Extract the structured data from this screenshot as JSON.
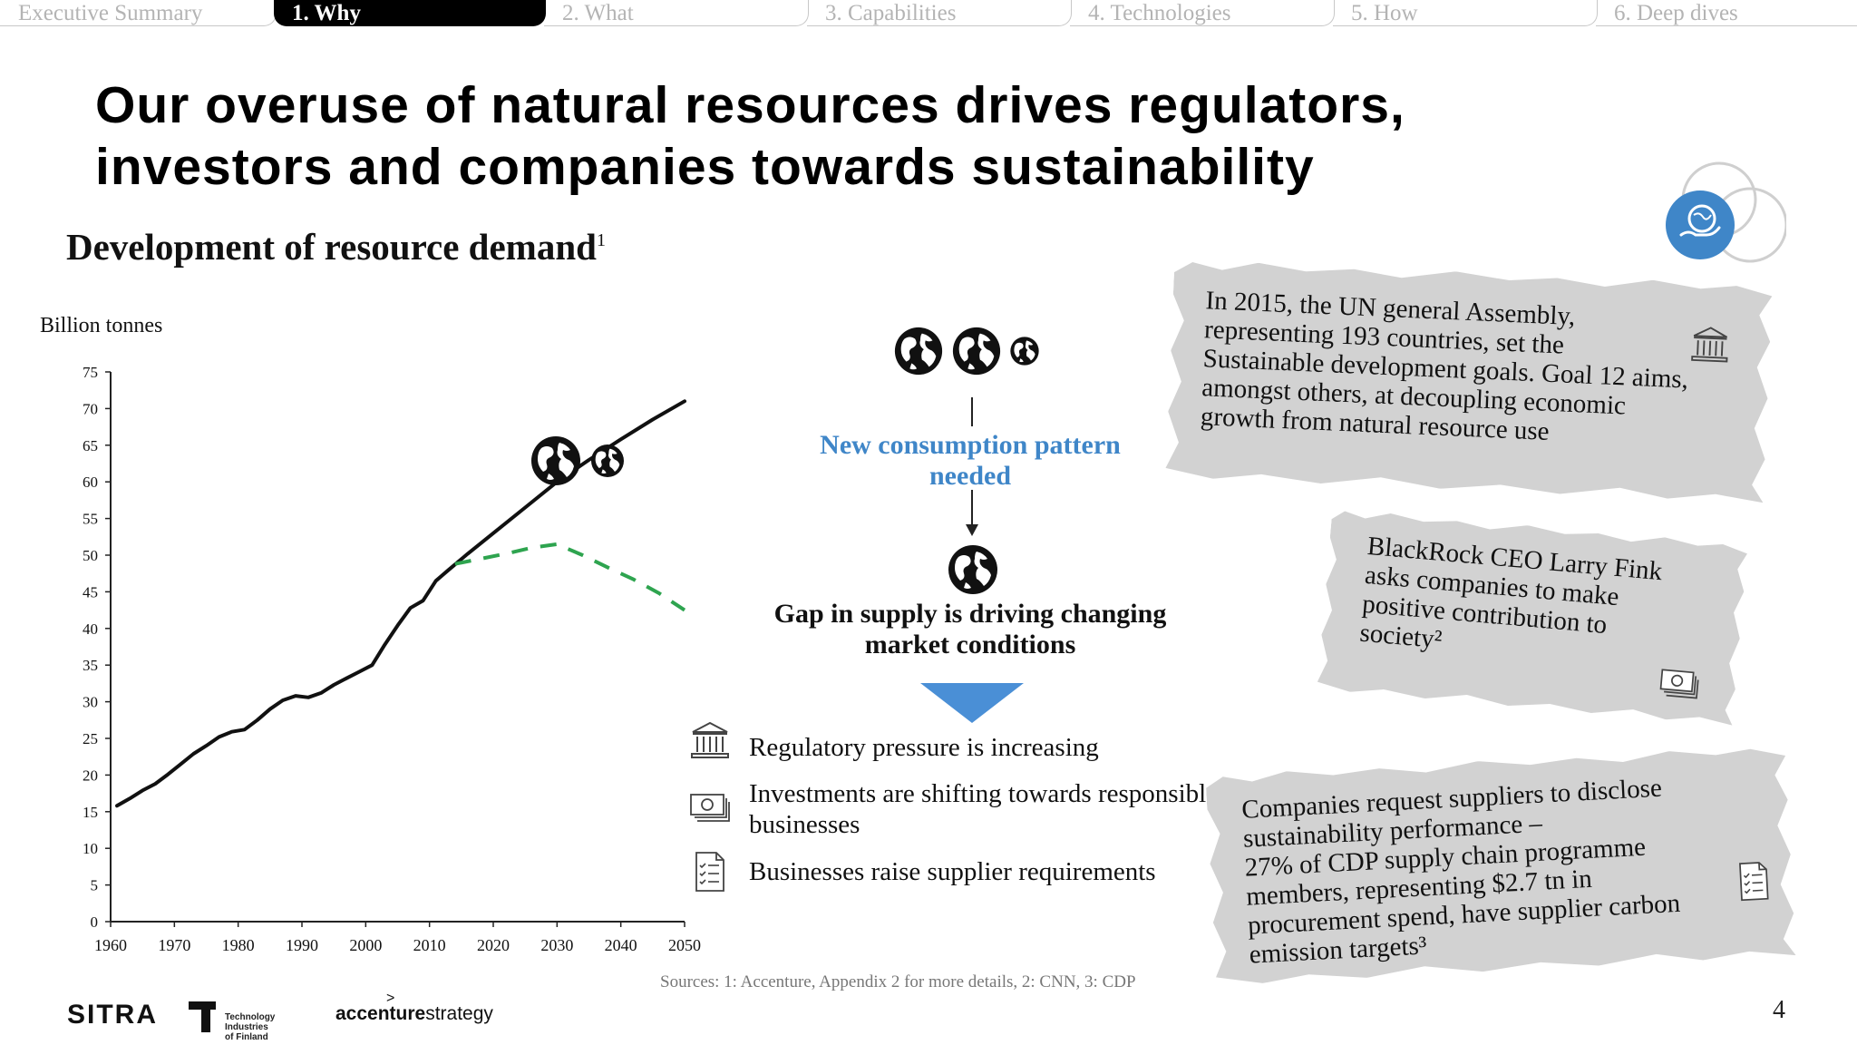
{
  "tabs": [
    {
      "label": "Executive Summary",
      "active": false
    },
    {
      "label": "1. Why",
      "active": true
    },
    {
      "label": "2. What",
      "active": false
    },
    {
      "label": "3. Capabilities",
      "active": false
    },
    {
      "label": "4. Technologies",
      "active": false
    },
    {
      "label": "5. How",
      "active": false
    },
    {
      "label": "6. Deep dives",
      "active": false
    }
  ],
  "title": {
    "line1": "Our overuse of natural resources drives regulators,",
    "line2": "investors and companies towards sustainability"
  },
  "section": {
    "heading": "Development of resource demand",
    "footnote": "1"
  },
  "chart_data": {
    "type": "line",
    "ylabel": "Billion tonnes",
    "xlabel": "",
    "xlim": [
      1960,
      2050
    ],
    "ylim": [
      0,
      75
    ],
    "x_ticks": [
      1960,
      1970,
      1980,
      1990,
      2000,
      2010,
      2020,
      2030,
      2040,
      2050
    ],
    "y_ticks": [
      0,
      5,
      10,
      15,
      20,
      25,
      30,
      35,
      40,
      45,
      50,
      55,
      60,
      65,
      70,
      75
    ],
    "grid": false,
    "series": [
      {
        "style": "solid",
        "color": "#111111",
        "x": [
          1961,
          1963,
          1965,
          1967,
          1969,
          1971,
          1973,
          1975,
          1977,
          1979,
          1981,
          1983,
          1985,
          1987,
          1989,
          1991,
          1993,
          1995,
          1997,
          1999,
          2001,
          2003,
          2005,
          2007,
          2009,
          2011,
          2013,
          2016,
          2020,
          2025,
          2030,
          2035,
          2040,
          2045,
          2050
        ],
        "y": [
          15.8,
          16.8,
          17.9,
          18.8,
          20.1,
          21.5,
          22.9,
          24.0,
          25.2,
          25.9,
          26.2,
          27.5,
          29.0,
          30.2,
          30.8,
          30.6,
          31.2,
          32.3,
          33.2,
          34.1,
          35.0,
          37.8,
          40.4,
          42.8,
          43.8,
          46.5,
          48.0,
          50.2,
          53.0,
          56.5,
          60.0,
          63.0,
          65.8,
          68.5,
          71.0
        ]
      },
      {
        "style": "dashed",
        "color": "#2ea44f",
        "x": [
          2014,
          2018,
          2022,
          2026,
          2030,
          2034,
          2038,
          2042,
          2046,
          2050
        ],
        "y": [
          48.8,
          49.5,
          50.2,
          51.0,
          51.5,
          50.0,
          48.3,
          46.7,
          44.8,
          42.5
        ]
      }
    ]
  },
  "flow": {
    "top_globes": [
      "globe-icon",
      "globe-icon",
      "globe-icon-partial"
    ],
    "consumption": "New consumption pattern needed",
    "gap": "Gap in supply is driving changing market conditions",
    "arrow_color": "#4a8fd6"
  },
  "bullets": [
    {
      "icon": "bank-icon",
      "text": "Regulatory pressure is increasing"
    },
    {
      "icon": "money-stack-icon",
      "text": "Investments are shifting towards responsible businesses"
    },
    {
      "icon": "checklist-icon",
      "text": "Businesses raise supplier requirements"
    }
  ],
  "cards": [
    {
      "lines": [
        "In 2015, the UN general Assembly,",
        "representing 193 countries, set the",
        "Sustainable development goals. Goal 12 aims,",
        "amongst others, at decoupling economic",
        "growth from natural resource use"
      ],
      "icon": "bank-icon"
    },
    {
      "lines": [
        "BlackRock CEO Larry Fink",
        "asks companies to make",
        "positive contribution to",
        "society²"
      ],
      "icon": "money-stack-icon"
    },
    {
      "lines": [
        "Companies request suppliers to disclose",
        "sustainability performance –",
        "27% of CDP supply chain programme",
        "members, representing $2.7 tn in",
        "procurement spend, have supplier carbon",
        "emission targets³"
      ],
      "icon": "checklist-icon"
    }
  ],
  "sources": "Sources: 1: Accenture, Appendix 2 for more details, 2: CNN, 3: CDP",
  "page_number": "4",
  "logos": {
    "sitra": "SITRA",
    "tif_line1": "Technology Industries",
    "tif_line2": "of Finland",
    "accenture_a": "accenture",
    "accenture_b": "strategy"
  },
  "colors": {
    "accent_blue": "#3f86c8",
    "projection_green": "#2ea44f",
    "paper_gray": "#d2d2d2"
  }
}
